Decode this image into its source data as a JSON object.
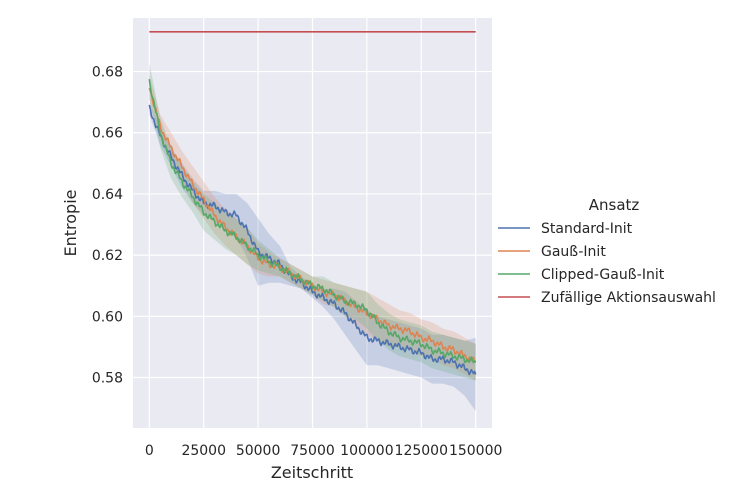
{
  "chart_data": {
    "type": "line",
    "xlabel": "Zeitschritt",
    "ylabel": "Entropie",
    "xlim": [
      -7500,
      157500
    ],
    "ylim": [
      0.5635,
      0.6975
    ],
    "xticks": [
      0,
      25000,
      50000,
      75000,
      100000,
      125000,
      150000
    ],
    "yticks": [
      0.58,
      0.6,
      0.62,
      0.64,
      0.66,
      0.68
    ],
    "ytick_labels": [
      "0.58",
      "0.60",
      "0.62",
      "0.64",
      "0.66",
      "0.68"
    ],
    "grid": true,
    "background": "#eaeaf2",
    "legend": {
      "title": "Ansatz",
      "position": "right-outside"
    },
    "x": [
      0,
      5000,
      10000,
      15000,
      20000,
      25000,
      30000,
      35000,
      40000,
      45000,
      50000,
      55000,
      60000,
      65000,
      70000,
      75000,
      80000,
      85000,
      90000,
      95000,
      100000,
      105000,
      110000,
      115000,
      120000,
      125000,
      130000,
      135000,
      140000,
      145000,
      150000
    ],
    "series": [
      {
        "name": "Standard-Init",
        "color": "#4c72b0",
        "values": [
          0.668,
          0.659,
          0.652,
          0.646,
          0.641,
          0.637,
          0.636,
          0.634,
          0.633,
          0.628,
          0.621,
          0.619,
          0.617,
          0.613,
          0.611,
          0.608,
          0.606,
          0.604,
          0.601,
          0.597,
          0.593,
          0.592,
          0.591,
          0.59,
          0.589,
          0.588,
          0.586,
          0.586,
          0.585,
          0.583,
          0.581
        ],
        "band": [
          0.002,
          0.003,
          0.003,
          0.004,
          0.004,
          0.004,
          0.005,
          0.006,
          0.007,
          0.009,
          0.011,
          0.008,
          0.006,
          0.003,
          0.002,
          0.002,
          0.003,
          0.005,
          0.007,
          0.008,
          0.009,
          0.008,
          0.008,
          0.008,
          0.008,
          0.008,
          0.008,
          0.008,
          0.008,
          0.009,
          0.012
        ]
      },
      {
        "name": "Gauß-Init",
        "color": "#dd8452",
        "values": [
          0.675,
          0.662,
          0.655,
          0.649,
          0.643,
          0.638,
          0.633,
          0.629,
          0.626,
          0.623,
          0.619,
          0.617,
          0.616,
          0.614,
          0.612,
          0.61,
          0.608,
          0.607,
          0.605,
          0.603,
          0.601,
          0.599,
          0.597,
          0.596,
          0.595,
          0.593,
          0.592,
          0.59,
          0.589,
          0.587,
          0.585
        ],
        "band": [
          0.004,
          0.004,
          0.005,
          0.005,
          0.006,
          0.006,
          0.006,
          0.006,
          0.006,
          0.006,
          0.005,
          0.004,
          0.003,
          0.003,
          0.003,
          0.003,
          0.004,
          0.004,
          0.005,
          0.006,
          0.007,
          0.007,
          0.007,
          0.006,
          0.006,
          0.006,
          0.006,
          0.006,
          0.006,
          0.006,
          0.006
        ]
      },
      {
        "name": "Clipped-Gauß-Init",
        "color": "#55a868",
        "values": [
          0.677,
          0.66,
          0.65,
          0.644,
          0.639,
          0.634,
          0.631,
          0.628,
          0.626,
          0.623,
          0.62,
          0.618,
          0.616,
          0.614,
          0.612,
          0.61,
          0.609,
          0.607,
          0.605,
          0.604,
          0.602,
          0.598,
          0.595,
          0.593,
          0.592,
          0.591,
          0.589,
          0.588,
          0.587,
          0.586,
          0.585
        ],
        "band": [
          0.006,
          0.005,
          0.005,
          0.005,
          0.005,
          0.006,
          0.006,
          0.006,
          0.006,
          0.006,
          0.005,
          0.004,
          0.003,
          0.003,
          0.003,
          0.003,
          0.004,
          0.004,
          0.005,
          0.005,
          0.006,
          0.006,
          0.006,
          0.006,
          0.006,
          0.006,
          0.006,
          0.006,
          0.006,
          0.006,
          0.006
        ]
      },
      {
        "name": "Zufällige Aktionsauswahl",
        "color": "#c44e52",
        "values": [
          0.693,
          0.693,
          0.693,
          0.693,
          0.693,
          0.693,
          0.693,
          0.693,
          0.693,
          0.693,
          0.693,
          0.693,
          0.693,
          0.693,
          0.693,
          0.693,
          0.693,
          0.693,
          0.693,
          0.693,
          0.693,
          0.693,
          0.693,
          0.693,
          0.693,
          0.693,
          0.693,
          0.693,
          0.693,
          0.693,
          0.693
        ],
        "band": null
      }
    ]
  }
}
